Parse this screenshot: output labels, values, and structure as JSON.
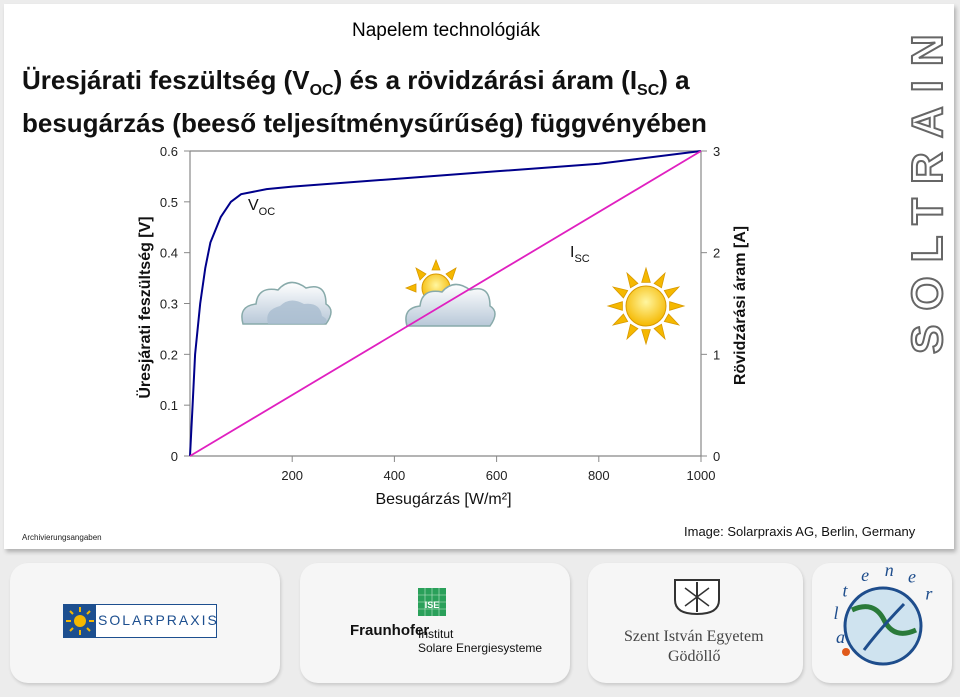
{
  "header": "Napelem technológiák",
  "title_line1_pre": "Üresjárati feszültség (V",
  "title_line1_sub1": "OC",
  "title_line1_mid": ") és a rövidzárási áram (I",
  "title_line1_sub2": "SC",
  "title_line1_post": ") a",
  "title_line2": "besugárzás (beeső teljesítménysűrűség) függvényében",
  "vertical_logo": "SOLTRAIN",
  "credit_left": "Archivierungsangaben",
  "credit_right": "Image: Solarpraxis AG, Berlin, Germany",
  "footer": {
    "solarpraxis": "SOLARPRAXIS",
    "fraunhofer": "Fraunhofer",
    "fraunhofer_ise": "ISE",
    "institut_line1": "Institut",
    "institut_line2": "Solare Energiesysteme",
    "szie_line1": "Szent István Egyetem",
    "szie_line2": "Gödöllő",
    "altener": "altener"
  },
  "colors": {
    "voc_line": "#00008b",
    "isc_line": "#e020c0",
    "axis": "#888888"
  },
  "chart_data": {
    "type": "line",
    "xlabel": "Besugárzás  [W/m²]",
    "ylabel_left": "Üresjárati feszültség [V]",
    "ylabel_right": "Rövidzárási áram [A]",
    "x_ticks": [
      "200",
      "400",
      "600",
      "800",
      "1000"
    ],
    "y_left_ticks": [
      "0",
      "0.1",
      "0.2",
      "0.3",
      "0.4",
      "0.5",
      "0.6"
    ],
    "y_right_ticks": [
      "0",
      "1",
      "2",
      "3"
    ],
    "xlim": [
      0,
      1000
    ],
    "ylim_left": [
      0,
      0.6
    ],
    "ylim_right": [
      0,
      3
    ],
    "series": [
      {
        "name": "VOC",
        "axis": "left",
        "x": [
          0,
          5,
          10,
          20,
          30,
          40,
          60,
          80,
          100,
          150,
          200,
          400,
          600,
          800,
          1000
        ],
        "y": [
          0,
          0.1,
          0.2,
          0.3,
          0.37,
          0.42,
          0.47,
          0.5,
          0.515,
          0.525,
          0.53,
          0.545,
          0.56,
          0.575,
          0.6
        ]
      },
      {
        "name": "ISC",
        "axis": "right",
        "x": [
          0,
          1000
        ],
        "y": [
          0,
          3
        ]
      }
    ],
    "annotations": [
      {
        "label": "V",
        "sub": "OC"
      },
      {
        "label": "I",
        "sub": "SC"
      }
    ]
  }
}
